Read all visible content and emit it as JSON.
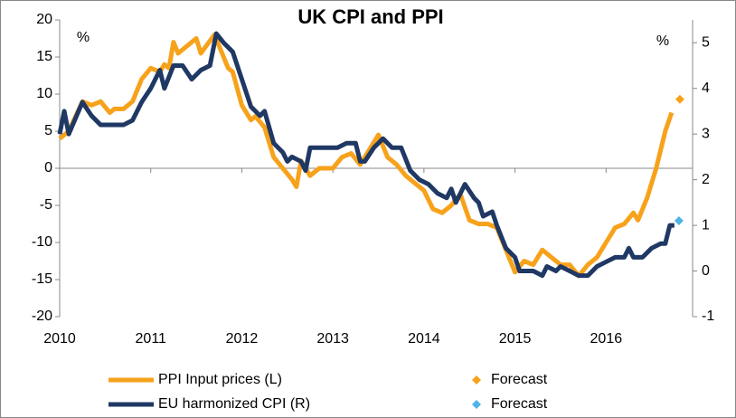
{
  "chart_data": {
    "type": "line",
    "title": "UK CPI and PPI",
    "y_unit_label": "%",
    "y2_unit_label": "%",
    "xlim": [
      2010,
      2016.95
    ],
    "xticks": [
      2010,
      2011,
      2012,
      2013,
      2014,
      2015,
      2016
    ],
    "ylim": [
      -20,
      20
    ],
    "yticks": [
      -20,
      -15,
      -10,
      -5,
      0,
      5,
      10,
      15,
      20
    ],
    "y2lim": [
      -1,
      5.5
    ],
    "y2ticks": [
      -1,
      0,
      1,
      2,
      3,
      4,
      5
    ],
    "series": [
      {
        "name": "PPI Input prices (L)",
        "type": "line",
        "color": "#f7a21b",
        "axis": "y",
        "x": [
          2010.0,
          2010.1,
          2010.25,
          2010.35,
          2010.45,
          2010.55,
          2010.6,
          2010.7,
          2010.8,
          2010.9,
          2011.0,
          2011.1,
          2011.15,
          2011.2,
          2011.25,
          2011.3,
          2011.4,
          2011.5,
          2011.55,
          2011.7,
          2011.75,
          2011.85,
          2011.9,
          2012.0,
          2012.1,
          2012.15,
          2012.25,
          2012.35,
          2012.45,
          2012.55,
          2012.6,
          2012.65,
          2012.75,
          2012.85,
          2013.0,
          2013.1,
          2013.2,
          2013.3,
          2013.4,
          2013.5,
          2013.6,
          2013.7,
          2013.8,
          2013.9,
          2014.0,
          2014.1,
          2014.2,
          2014.3,
          2014.4,
          2014.5,
          2014.6,
          2014.7,
          2014.8,
          2014.9,
          2015.0,
          2015.1,
          2015.2,
          2015.3,
          2015.4,
          2015.5,
          2015.6,
          2015.7,
          2015.8,
          2015.9,
          2016.0,
          2016.1,
          2016.2,
          2016.3,
          2016.35,
          2016.45,
          2016.55,
          2016.65,
          2016.72
        ],
        "values": [
          4,
          5,
          9,
          8.5,
          9,
          7.5,
          8,
          8,
          9,
          12,
          13.5,
          13,
          14,
          13.5,
          17,
          15.5,
          16.5,
          17.5,
          15.5,
          18,
          16.5,
          13.5,
          13,
          8.5,
          6.5,
          7,
          5.5,
          1.5,
          0,
          -1.5,
          -2.5,
          1,
          -1,
          0,
          0,
          1.5,
          2,
          0.5,
          2.5,
          4.5,
          1.5,
          0.5,
          -1,
          -2,
          -3,
          -5.5,
          -6,
          -5,
          -3.5,
          -7,
          -7.5,
          -7.5,
          -8,
          -11,
          -14,
          -12.5,
          -13,
          -11,
          -12,
          -13,
          -13,
          -14.5,
          -13,
          -12,
          -10,
          -8,
          -7.5,
          -6,
          -7,
          -4,
          0,
          5,
          7.5
        ]
      },
      {
        "name": "EU harmonized CPI (R)",
        "type": "line",
        "color": "#1f3864",
        "axis": "y2",
        "x": [
          2010.0,
          2010.05,
          2010.1,
          2010.25,
          2010.35,
          2010.45,
          2010.6,
          2010.7,
          2010.8,
          2010.9,
          2011.0,
          2011.1,
          2011.15,
          2011.25,
          2011.35,
          2011.45,
          2011.55,
          2011.65,
          2011.72,
          2011.8,
          2011.9,
          2012.0,
          2012.1,
          2012.2,
          2012.25,
          2012.35,
          2012.45,
          2012.5,
          2012.55,
          2012.65,
          2012.7,
          2012.75,
          2012.85,
          2012.95,
          2013.05,
          2013.15,
          2013.25,
          2013.3,
          2013.35,
          2013.45,
          2013.55,
          2013.65,
          2013.75,
          2013.85,
          2013.95,
          2014.05,
          2014.15,
          2014.25,
          2014.3,
          2014.35,
          2014.45,
          2014.55,
          2014.6,
          2014.65,
          2014.75,
          2014.8,
          2014.9,
          2015.0,
          2015.05,
          2015.1,
          2015.2,
          2015.3,
          2015.35,
          2015.45,
          2015.5,
          2015.6,
          2015.7,
          2015.8,
          2015.9,
          2016.0,
          2016.1,
          2016.2,
          2016.25,
          2016.3,
          2016.4,
          2016.5,
          2016.6,
          2016.65,
          2016.7,
          2016.75
        ],
        "values": [
          3.0,
          3.5,
          3.0,
          3.7,
          3.4,
          3.2,
          3.2,
          3.2,
          3.3,
          3.7,
          4.0,
          4.4,
          4.0,
          4.5,
          4.5,
          4.2,
          4.4,
          4.5,
          5.2,
          5.0,
          4.8,
          4.2,
          3.6,
          3.4,
          3.5,
          2.8,
          2.6,
          2.4,
          2.5,
          2.4,
          2.2,
          2.7,
          2.7,
          2.7,
          2.7,
          2.8,
          2.8,
          2.4,
          2.4,
          2.7,
          2.9,
          2.7,
          2.7,
          2.2,
          2.0,
          1.9,
          1.7,
          1.6,
          1.8,
          1.5,
          1.9,
          1.6,
          1.5,
          1.2,
          1.3,
          1.0,
          0.5,
          0.3,
          0.0,
          0.0,
          0.0,
          -0.1,
          0.1,
          0.0,
          0.1,
          0.0,
          -0.1,
          -0.1,
          0.1,
          0.2,
          0.3,
          0.3,
          0.5,
          0.3,
          0.3,
          0.5,
          0.6,
          0.6,
          1.0,
          1.0
        ]
      },
      {
        "name": "Forecast",
        "type": "scatter",
        "color": "#f7a21b",
        "axis": "y",
        "x": [
          2016.81
        ],
        "values": [
          9.3
        ]
      },
      {
        "name": "Forecast",
        "type": "scatter",
        "color": "#4fb3e8",
        "axis": "y2",
        "x": [
          2016.8
        ],
        "values": [
          1.1
        ]
      }
    ]
  }
}
